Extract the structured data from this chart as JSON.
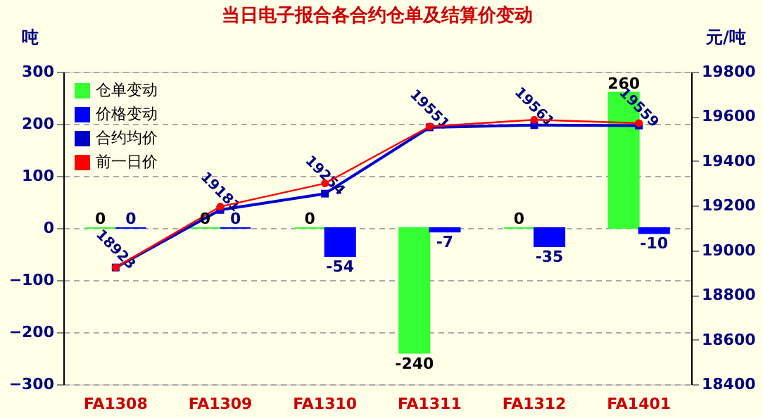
{
  "chart_data": {
    "type": "bar",
    "title": "当日电子报合各合约仓单及结算价变动",
    "ylabel": "吨",
    "y2label": "元/吨",
    "categories": [
      "FA1308",
      "FA1309",
      "FA1310",
      "FA1311",
      "FA1312",
      "FA1401"
    ],
    "series": [
      {
        "name": "仓单变动",
        "type": "bar",
        "color": "#33ff33",
        "values": [
          0,
          0,
          0,
          -240,
          0,
          260
        ],
        "value_labels": [
          "0",
          "0",
          "0",
          "-240",
          "0",
          "260"
        ]
      },
      {
        "name": "价格变动",
        "type": "bar",
        "color": "#0000ff",
        "values": [
          0,
          0,
          -54,
          -7,
          -35,
          -10
        ],
        "value_labels": [
          "0",
          "0",
          "-54",
          "-7",
          "-35",
          "-10"
        ]
      },
      {
        "name": "合约均价",
        "type": "line",
        "axis": "y2",
        "color": "#0000cc",
        "marker": "square",
        "values": [
          18923,
          19181,
          19254,
          19551,
          19561,
          19559
        ],
        "value_labels": [
          "18923",
          "19181",
          "19254",
          "19551",
          "19561",
          "19559"
        ]
      },
      {
        "name": "前一日价",
        "type": "line",
        "axis": "y2",
        "color": "#ff0000",
        "marker": "circle",
        "values": [
          18923,
          19196,
          19300,
          19555,
          19585,
          19570
        ]
      }
    ],
    "ylim": [
      -300,
      300
    ],
    "yticks": [
      -300,
      -200,
      -100,
      0,
      100,
      200,
      300
    ],
    "y2lim": [
      18400,
      19800
    ],
    "y2ticks": [
      18400,
      18600,
      18800,
      19000,
      19200,
      19400,
      19600,
      19800
    ],
    "grid": "y",
    "legend": "top left"
  }
}
